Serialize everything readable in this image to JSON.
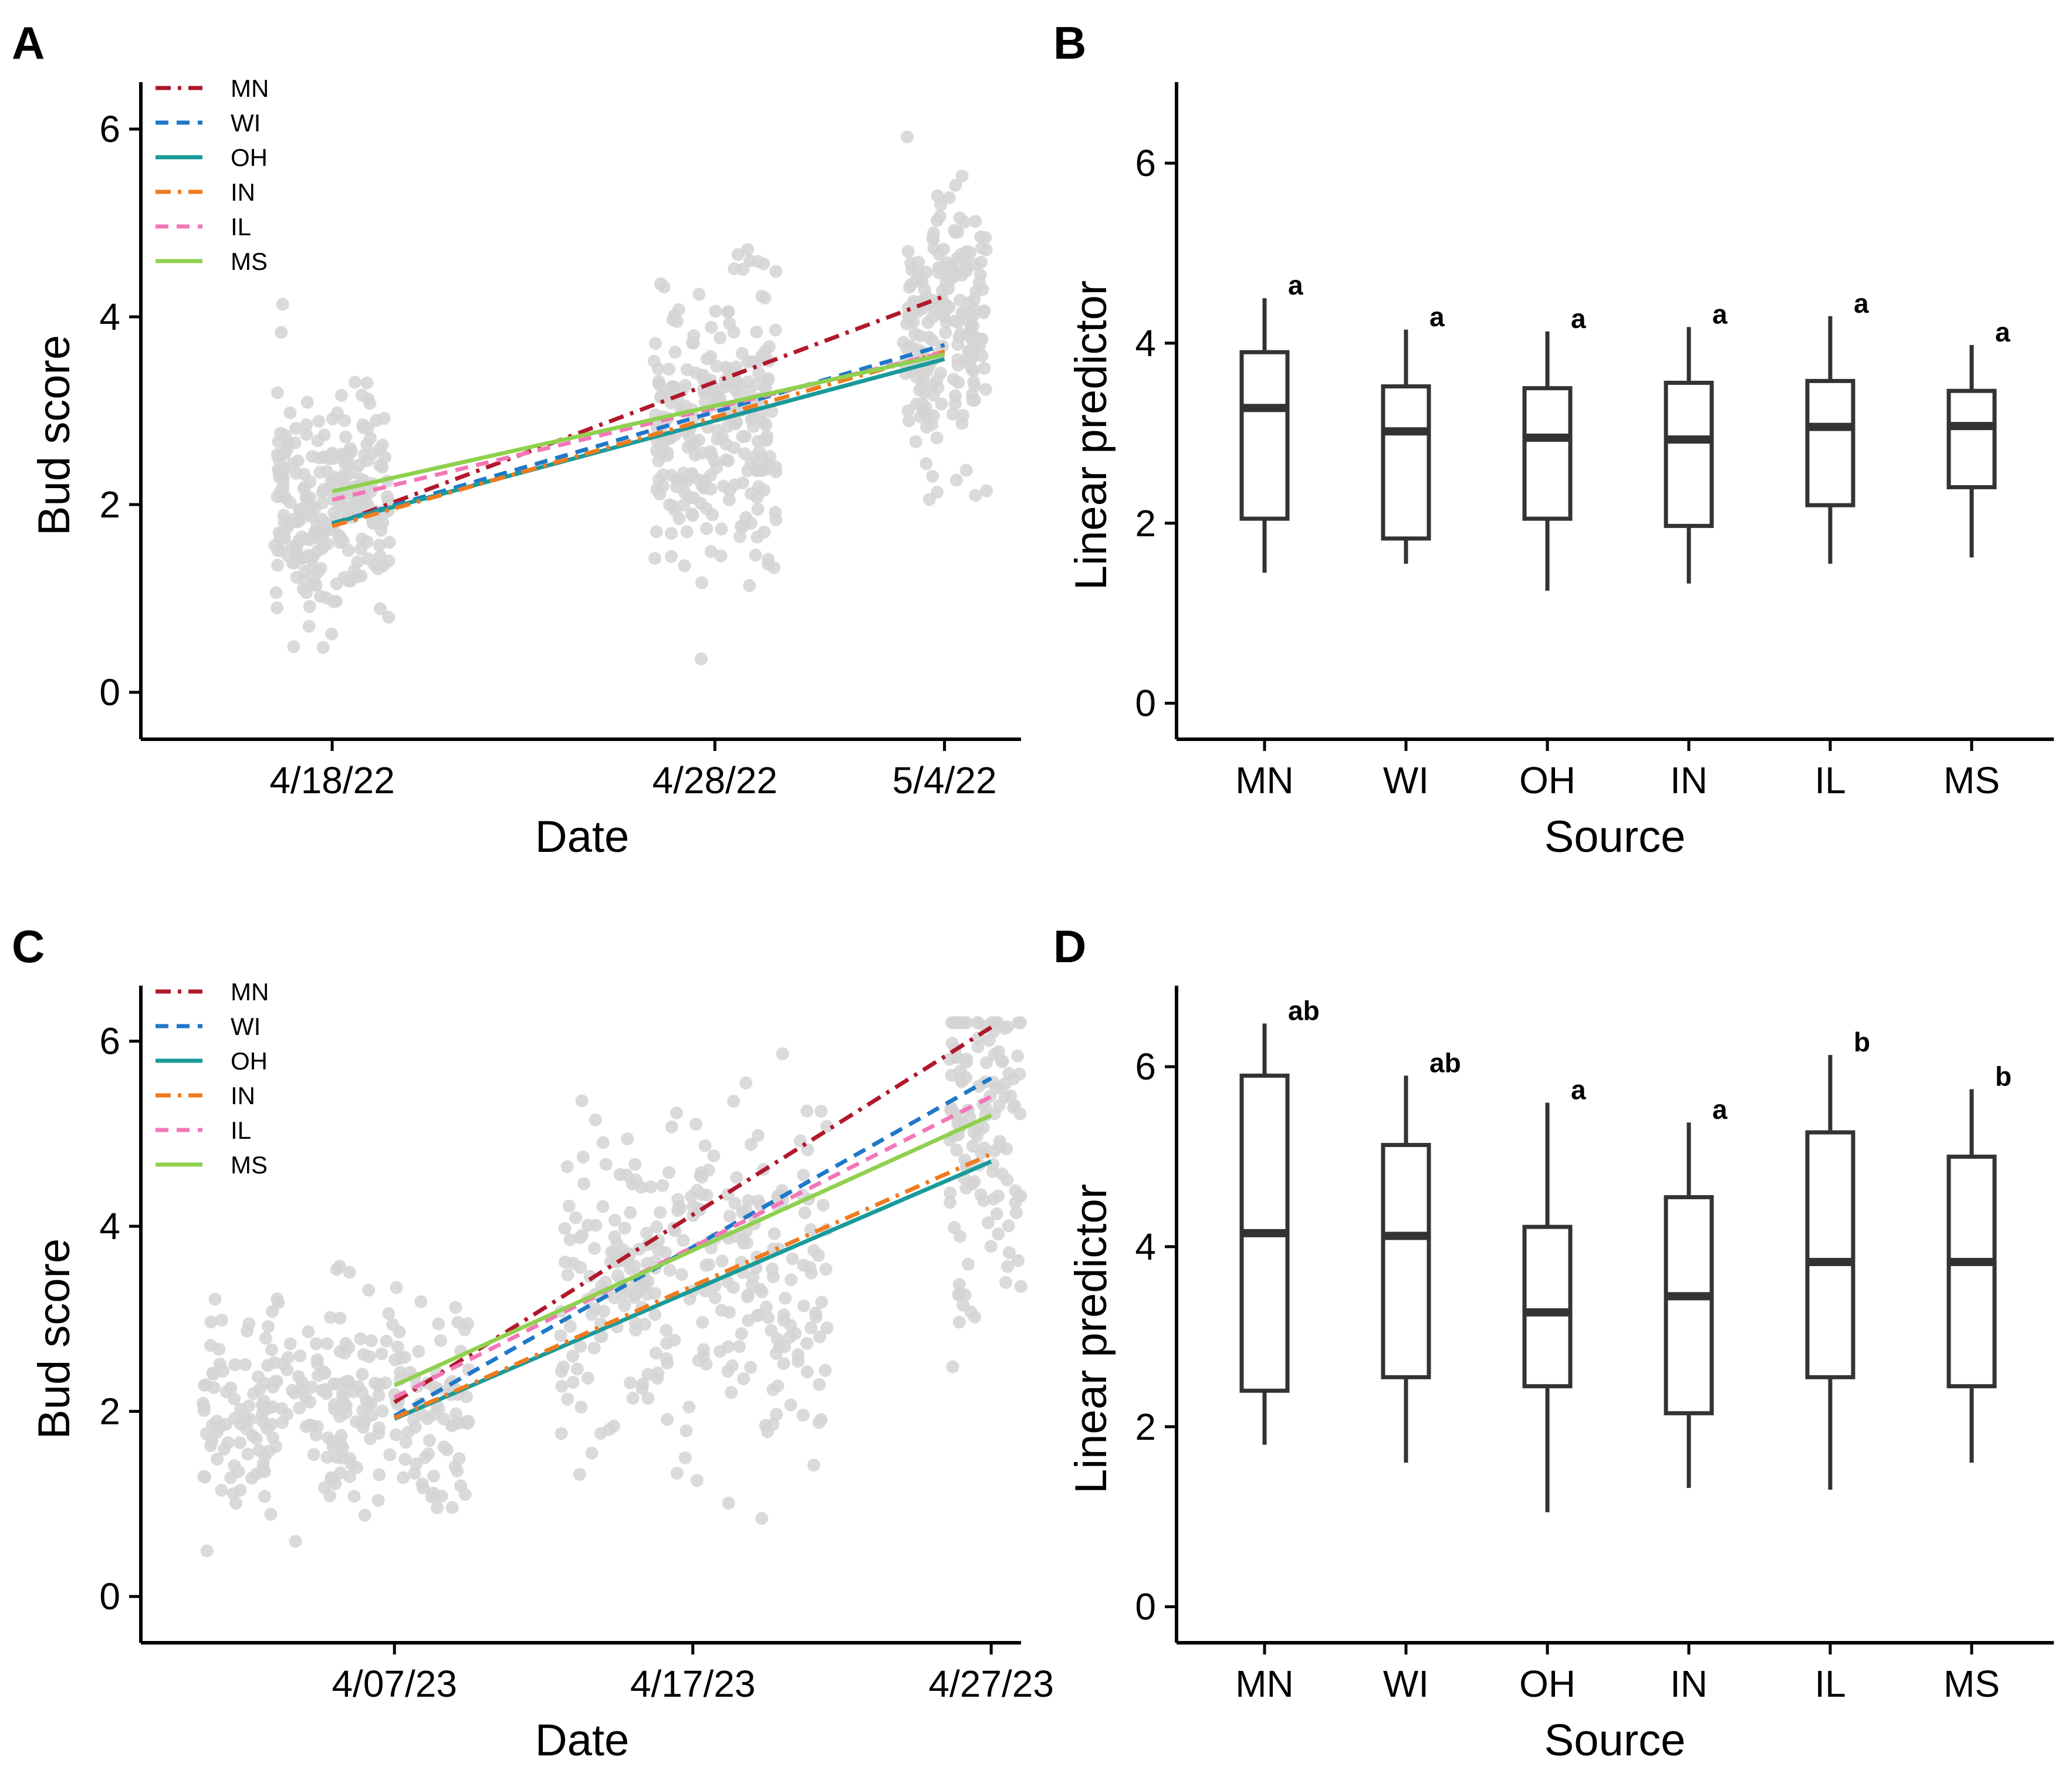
{
  "figure": {
    "background": "#ffffff"
  },
  "legend_styles": {
    "MN": {
      "color": "#b2182b",
      "dash": "26 12 6 12"
    },
    "WI": {
      "color": "#1f78c8",
      "dash": "22 14"
    },
    "OH": {
      "color": "#1a9a9a",
      "dash": ""
    },
    "IN": {
      "color": "#f07b1e",
      "dash": "26 12 6 12"
    },
    "IL": {
      "color": "#f377b8",
      "dash": "22 14"
    },
    "MS": {
      "color": "#8fd14f",
      "dash": ""
    }
  },
  "chart_data": [
    {
      "panel": "A",
      "type": "scatter",
      "xlabel": "Date",
      "ylabel": "Bud score",
      "xlim": [
        0,
        23
      ],
      "ylim": [
        -0.5,
        6.5
      ],
      "yticks": [
        0,
        2,
        4,
        6
      ],
      "xticks": [
        {
          "value": 5,
          "label": "4/18/22"
        },
        {
          "value": 15,
          "label": "4/28/22"
        },
        {
          "value": 21,
          "label": "5/4/22"
        }
      ],
      "legend_position": "top-left",
      "point_clusters": [
        {
          "x_center": 5,
          "x_spread": 3.0,
          "y_mean": 2.0,
          "y_sd": 0.6,
          "n": 260,
          "seed": 11
        },
        {
          "x_center": 15,
          "x_spread": 3.2,
          "y_mean": 2.9,
          "y_sd": 0.7,
          "n": 260,
          "seed": 23
        },
        {
          "x_center": 21,
          "x_spread": 2.2,
          "y_mean": 3.8,
          "y_sd": 0.7,
          "n": 200,
          "seed": 37
        }
      ],
      "series": [
        {
          "name": "MN",
          "x": [
            5,
            21
          ],
          "y": [
            1.78,
            4.22
          ]
        },
        {
          "name": "WI",
          "x": [
            5,
            21
          ],
          "y": [
            1.8,
            3.7
          ]
        },
        {
          "name": "OH",
          "x": [
            5,
            21
          ],
          "y": [
            1.8,
            3.55
          ]
        },
        {
          "name": "IN",
          "x": [
            5,
            21
          ],
          "y": [
            1.77,
            3.63
          ]
        },
        {
          "name": "IL",
          "x": [
            5,
            21
          ],
          "y": [
            2.05,
            3.62
          ]
        },
        {
          "name": "MS",
          "x": [
            5,
            21
          ],
          "y": [
            2.14,
            3.6
          ]
        }
      ]
    },
    {
      "panel": "B",
      "type": "box",
      "xlabel": "Source",
      "ylabel": "Linear predictor",
      "ylim": [
        -0.4,
        6.9
      ],
      "yticks": [
        0,
        2,
        4,
        6
      ],
      "categories": [
        "MN",
        "WI",
        "OH",
        "IN",
        "IL",
        "MS"
      ],
      "boxes": [
        {
          "min": 1.45,
          "q1": 2.05,
          "median": 3.28,
          "q3": 3.9,
          "max": 4.5,
          "letter": "a"
        },
        {
          "min": 1.55,
          "q1": 1.83,
          "median": 3.02,
          "q3": 3.52,
          "max": 4.15,
          "letter": "a"
        },
        {
          "min": 1.25,
          "q1": 2.05,
          "median": 2.95,
          "q3": 3.5,
          "max": 4.13,
          "letter": "a"
        },
        {
          "min": 1.33,
          "q1": 1.97,
          "median": 2.93,
          "q3": 3.56,
          "max": 4.18,
          "letter": "a"
        },
        {
          "min": 1.55,
          "q1": 2.2,
          "median": 3.07,
          "q3": 3.58,
          "max": 4.3,
          "letter": "a"
        },
        {
          "min": 1.62,
          "q1": 2.4,
          "median": 3.08,
          "q3": 3.47,
          "max": 3.98,
          "letter": "a"
        }
      ]
    },
    {
      "panel": "C",
      "type": "scatter",
      "xlabel": "Date",
      "ylabel": "Bud score",
      "xlim": [
        0,
        29.5
      ],
      "ylim": [
        -0.5,
        6.6
      ],
      "yticks": [
        0,
        2,
        4,
        6
      ],
      "xticks": [
        {
          "value": 8.5,
          "label": "4/07/23"
        },
        {
          "value": 18.5,
          "label": "4/17/23"
        },
        {
          "value": 28.5,
          "label": "4/27/23"
        }
      ],
      "legend_position": "top-left",
      "point_clusters": [
        {
          "x_center": 6.5,
          "x_spread": 9.0,
          "y_mean": 2.0,
          "y_sd": 0.6,
          "n": 280,
          "seed": 41
        },
        {
          "x_center": 18.5,
          "x_spread": 9.0,
          "y_mean": 3.4,
          "y_sd": 0.9,
          "n": 300,
          "seed": 53
        },
        {
          "x_center": 29,
          "x_spread": 3.8,
          "y_mean": 5.1,
          "y_sd": 0.9,
          "n": 220,
          "seed": 67
        }
      ],
      "series": [
        {
          "name": "MN",
          "x": [
            8.5,
            28.5
          ],
          "y": [
            2.1,
            6.15
          ]
        },
        {
          "name": "WI",
          "x": [
            8.5,
            28.5
          ],
          "y": [
            1.95,
            5.6
          ]
        },
        {
          "name": "OH",
          "x": [
            8.5,
            28.5
          ],
          "y": [
            1.92,
            4.7
          ]
        },
        {
          "name": "IN",
          "x": [
            8.5,
            28.5
          ],
          "y": [
            1.93,
            4.78
          ]
        },
        {
          "name": "IL",
          "x": [
            8.5,
            28.5
          ],
          "y": [
            2.15,
            5.4
          ]
        },
        {
          "name": "MS",
          "x": [
            8.5,
            28.5
          ],
          "y": [
            2.28,
            5.2
          ]
        }
      ]
    },
    {
      "panel": "D",
      "type": "box",
      "xlabel": "Source",
      "ylabel": "Linear predictor",
      "ylim": [
        -0.4,
        6.9
      ],
      "yticks": [
        0,
        2,
        4,
        6
      ],
      "categories": [
        "MN",
        "WI",
        "OH",
        "IN",
        "IL",
        "MS"
      ],
      "boxes": [
        {
          "min": 1.8,
          "q1": 2.4,
          "median": 4.15,
          "q3": 5.9,
          "max": 6.48,
          "letter": "ab"
        },
        {
          "min": 1.6,
          "q1": 2.55,
          "median": 4.12,
          "q3": 5.13,
          "max": 5.9,
          "letter": "ab"
        },
        {
          "min": 1.05,
          "q1": 2.45,
          "median": 3.27,
          "q3": 4.22,
          "max": 5.6,
          "letter": "a"
        },
        {
          "min": 1.32,
          "q1": 2.15,
          "median": 3.45,
          "q3": 4.55,
          "max": 5.38,
          "letter": "a"
        },
        {
          "min": 1.3,
          "q1": 2.55,
          "median": 3.83,
          "q3": 5.27,
          "max": 6.13,
          "letter": "b"
        },
        {
          "min": 1.6,
          "q1": 2.45,
          "median": 3.83,
          "q3": 5.0,
          "max": 5.75,
          "letter": "b"
        }
      ]
    }
  ]
}
